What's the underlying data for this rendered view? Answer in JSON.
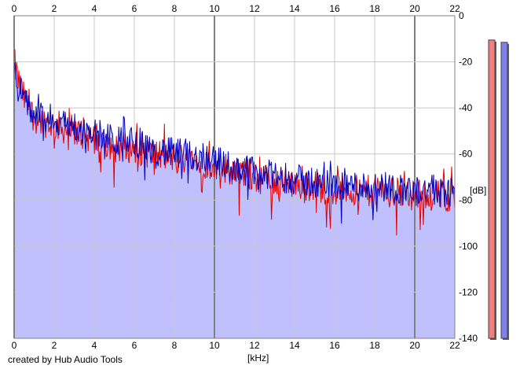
{
  "credit": "created by Hub Audio Tools",
  "chart_data": {
    "type": "line",
    "xlabel": "[kHz]",
    "ylabel": "[dB]",
    "xlim": [
      0,
      22
    ],
    "ylim": [
      -140,
      0
    ],
    "x_ticks": [
      "0",
      "2",
      "4",
      "6",
      "8",
      "10",
      "12",
      "14",
      "16",
      "18",
      "20",
      "22"
    ],
    "y_ticks": [
      "0",
      "-20",
      "-40",
      "-60",
      "-80",
      "-100",
      "-120",
      "-140"
    ],
    "grid": true,
    "fill_color": "#c0c0ff",
    "series": [
      {
        "color": "#e00000",
        "x": [
          0,
          0.2,
          0.5,
          1,
          1.5,
          2,
          2.5,
          3,
          3.5,
          4,
          4.5,
          5,
          5.5,
          6,
          6.5,
          7,
          7.5,
          8,
          8.5,
          9,
          9.5,
          10,
          10.5,
          11,
          11.5,
          12,
          12.5,
          13,
          13.5,
          14,
          14.5,
          15,
          15.5,
          16,
          16.5,
          17,
          17.5,
          18,
          18.5,
          19,
          19.5,
          20,
          20.5,
          21,
          21.5,
          22
        ],
        "values": [
          -20,
          -28,
          -36,
          -44,
          -46,
          -47,
          -49,
          -50,
          -52,
          -53,
          -55,
          -56,
          -57,
          -57,
          -59,
          -60,
          -61,
          -62,
          -62,
          -63,
          -64,
          -64,
          -66,
          -67,
          -68,
          -70,
          -71,
          -72,
          -72,
          -73,
          -74,
          -74,
          -75,
          -75,
          -75,
          -76,
          -76,
          -76,
          -76,
          -77,
          -77,
          -78,
          -77,
          -78,
          -78,
          -79
        ]
      },
      {
        "color": "#0000c0",
        "x": [
          0,
          0.2,
          0.5,
          1,
          1.5,
          2,
          2.5,
          3,
          3.5,
          4,
          4.5,
          5,
          5.5,
          6,
          6.5,
          7,
          7.5,
          8,
          8.5,
          9,
          9.5,
          10,
          10.5,
          11,
          11.5,
          12,
          12.5,
          13,
          13.5,
          14,
          14.5,
          15,
          15.5,
          16,
          16.5,
          17,
          17.5,
          18,
          18.5,
          19,
          19.5,
          20,
          20.5,
          21,
          21.5,
          22
        ],
        "values": [
          -22,
          -29,
          -37,
          -43,
          -45,
          -45,
          -47,
          -48,
          -50,
          -51,
          -53,
          -54,
          -55,
          -54,
          -57,
          -58,
          -59,
          -60,
          -60,
          -61,
          -61,
          -62,
          -65,
          -66,
          -67,
          -68,
          -69,
          -70,
          -70,
          -71,
          -72,
          -72,
          -73,
          -73,
          -73,
          -74,
          -74,
          -74,
          -74,
          -75,
          -75,
          -76,
          -75,
          -76,
          -76,
          -77
        ]
      }
    ],
    "meters": [
      {
        "color": "#f08080",
        "value": -2
      },
      {
        "color": "#8080f0",
        "value": -3
      }
    ]
  }
}
